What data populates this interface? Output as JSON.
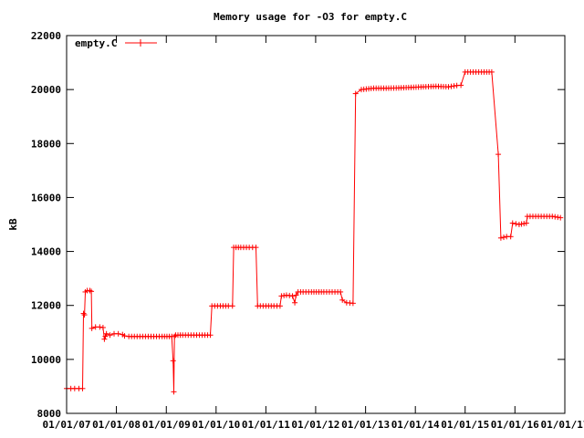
{
  "chart_data": {
    "type": "line",
    "title": "Memory usage for -O3 for empty.C",
    "xlabel": "",
    "ylabel": "kB",
    "ylim": [
      8000,
      22000
    ],
    "yticks": [
      8000,
      10000,
      12000,
      14000,
      16000,
      18000,
      20000,
      22000
    ],
    "xlim": [
      "2007-01-01",
      "2017-01-01"
    ],
    "xticks": [
      "01/01/07",
      "01/01/08",
      "01/01/09",
      "01/01/10",
      "01/01/11",
      "01/01/12",
      "01/01/13",
      "01/01/14",
      "01/01/15",
      "01/01/16",
      "01/01/17"
    ],
    "xtick_dates": [
      "2007-01-01",
      "2008-01-01",
      "2009-01-01",
      "2010-01-01",
      "2011-01-01",
      "2012-01-01",
      "2013-01-01",
      "2014-01-01",
      "2015-01-01",
      "2016-01-01",
      "2017-01-01"
    ],
    "grid": false,
    "legend_position": "top-left",
    "series": [
      {
        "name": "empty.C",
        "color": "#ff0000",
        "points": [
          [
            "2007-01-01",
            8920
          ],
          [
            "2007-02-01",
            8920
          ],
          [
            "2007-03-01",
            8920
          ],
          [
            "2007-04-01",
            8920
          ],
          [
            "2007-04-28",
            8920
          ],
          [
            "2007-05-05",
            11700
          ],
          [
            "2007-05-12",
            11650
          ],
          [
            "2007-05-18",
            12500
          ],
          [
            "2007-06-01",
            12550
          ],
          [
            "2007-06-20",
            12550
          ],
          [
            "2007-07-01",
            12520
          ],
          [
            "2007-07-05",
            11150
          ],
          [
            "2007-08-01",
            11200
          ],
          [
            "2007-09-01",
            11200
          ],
          [
            "2007-09-25",
            11180
          ],
          [
            "2007-10-05",
            10750
          ],
          [
            "2007-10-12",
            10850
          ],
          [
            "2007-10-20",
            10950
          ],
          [
            "2007-11-15",
            10900
          ],
          [
            "2007-12-15",
            10950
          ],
          [
            "2008-01-15",
            10950
          ],
          [
            "2008-02-15",
            10920
          ],
          [
            "2008-03-01",
            10870
          ],
          [
            "2008-04-01",
            10850
          ],
          [
            "2008-06-01",
            10850
          ],
          [
            "2008-08-01",
            10850
          ],
          [
            "2008-10-01",
            10850
          ],
          [
            "2008-12-01",
            10850
          ],
          [
            "2009-02-10",
            10850
          ],
          [
            "2009-02-20",
            9950
          ],
          [
            "2009-02-25",
            8800
          ],
          [
            "2009-03-02",
            10850
          ],
          [
            "2009-03-10",
            10900
          ],
          [
            "2009-05-01",
            10900
          ],
          [
            "2009-07-01",
            10900
          ],
          [
            "2009-09-01",
            10900
          ],
          [
            "2009-11-20",
            10900
          ],
          [
            "2009-12-01",
            11980
          ],
          [
            "2010-02-01",
            11980
          ],
          [
            "2010-04-01",
            11980
          ],
          [
            "2010-05-01",
            11980
          ],
          [
            "2010-05-10",
            14150
          ],
          [
            "2010-07-01",
            14150
          ],
          [
            "2010-09-01",
            14150
          ],
          [
            "2010-10-20",
            14150
          ],
          [
            "2010-11-01",
            11980
          ],
          [
            "2011-01-01",
            11980
          ],
          [
            "2011-03-01",
            11980
          ],
          [
            "2011-04-15",
            11980
          ],
          [
            "2011-04-25",
            12350
          ],
          [
            "2011-06-01",
            12380
          ],
          [
            "2011-07-15",
            12350
          ],
          [
            "2011-08-01",
            12100
          ],
          [
            "2011-08-10",
            12380
          ],
          [
            "2011-08-25",
            12500
          ],
          [
            "2011-10-01",
            12500
          ],
          [
            "2011-12-01",
            12500
          ],
          [
            "2012-03-01",
            12500
          ],
          [
            "2012-05-01",
            12500
          ],
          [
            "2012-07-01",
            12500
          ],
          [
            "2012-07-15",
            12200
          ],
          [
            "2012-08-15",
            12100
          ],
          [
            "2012-10-01",
            12080
          ],
          [
            "2012-10-20",
            19850
          ],
          [
            "2012-12-01",
            20000
          ],
          [
            "2013-03-01",
            20050
          ],
          [
            "2013-06-01",
            20050
          ],
          [
            "2013-09-01",
            20060
          ],
          [
            "2013-12-01",
            20080
          ],
          [
            "2014-03-01",
            20100
          ],
          [
            "2014-06-01",
            20120
          ],
          [
            "2014-09-01",
            20100
          ],
          [
            "2014-11-01",
            20150
          ],
          [
            "2014-12-01",
            20160
          ],
          [
            "2015-01-01",
            20650
          ],
          [
            "2015-03-01",
            20650
          ],
          [
            "2015-05-01",
            20650
          ],
          [
            "2015-07-15",
            20650
          ],
          [
            "2015-09-01",
            17600
          ],
          [
            "2015-09-20",
            14500
          ],
          [
            "2015-11-01",
            14550
          ],
          [
            "2015-12-01",
            14550
          ],
          [
            "2015-12-15",
            15050
          ],
          [
            "2016-02-01",
            15000
          ],
          [
            "2016-03-25",
            15050
          ],
          [
            "2016-04-01",
            15300
          ],
          [
            "2016-06-01",
            15300
          ],
          [
            "2016-08-01",
            15300
          ],
          [
            "2016-10-01",
            15300
          ],
          [
            "2016-11-30",
            15250
          ]
        ]
      }
    ]
  }
}
